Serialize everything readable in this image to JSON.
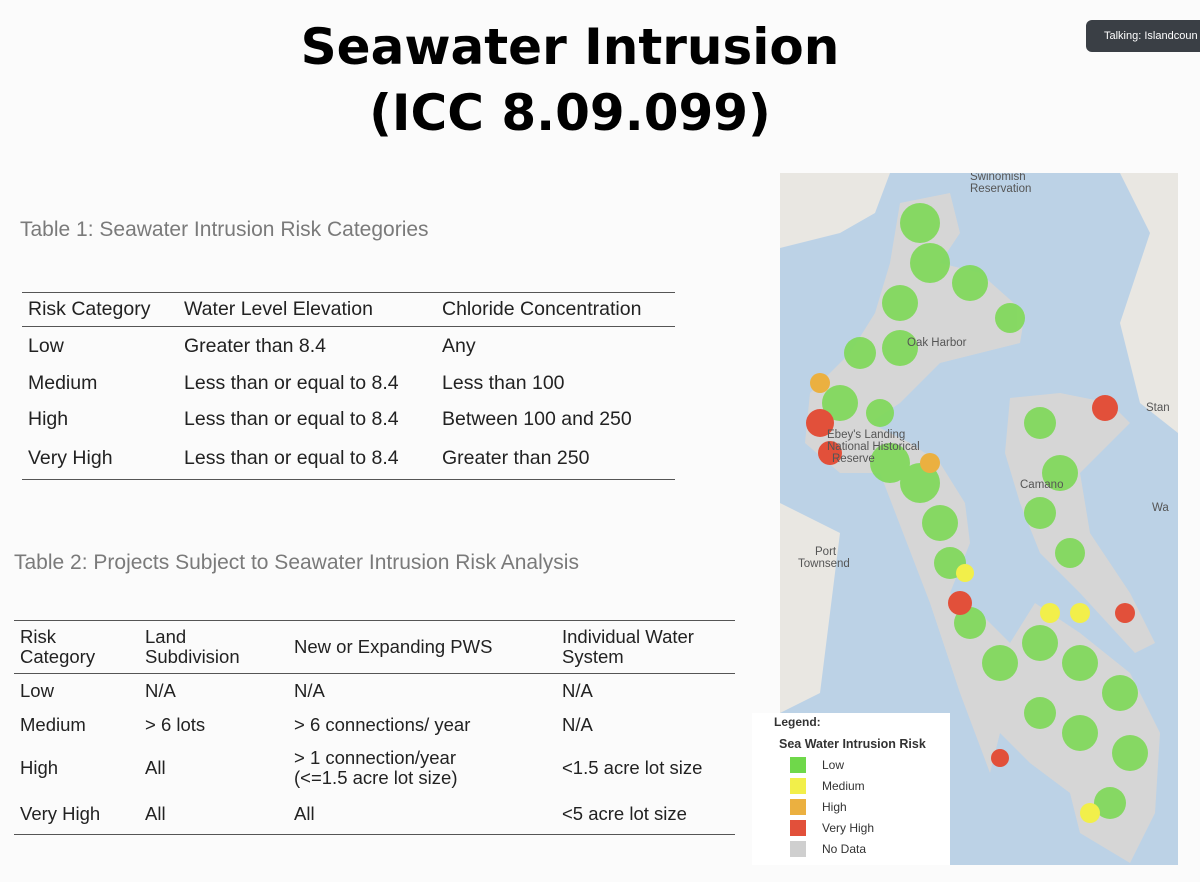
{
  "talking": "Talking: Islandcoun",
  "title": {
    "line1": "Seawater Intrusion",
    "line2": "(ICC 8.09.099)"
  },
  "table1": {
    "caption": "Table 1: Seawater Intrusion Risk Categories",
    "header": [
      "Risk Category",
      "Water Level Elevation",
      "Chloride Concentration"
    ],
    "rows": [
      [
        "Low",
        "Greater than 8.4",
        "Any"
      ],
      [
        "Medium",
        "Less than or equal to 8.4",
        "Less than 100"
      ],
      [
        "High",
        "Less than or equal to 8.4",
        "Between 100 and 250"
      ],
      [
        "Very High",
        "Less than or equal to 8.4",
        "Greater than 250"
      ]
    ]
  },
  "table2": {
    "caption": "Table 2: Projects Subject to Seawater Intrusion Risk Analysis",
    "header": [
      "Risk Category",
      "Land Subdivision",
      "New or Expanding PWS",
      "Individual Water System"
    ],
    "rows": [
      [
        "Low",
        "N/A",
        "N/A",
        "N/A"
      ],
      [
        "Medium",
        "> 6 lots",
        "> 6 connections/ year",
        "N/A"
      ],
      [
        "High",
        "All",
        [
          "> 1 connection/year",
          "(<=1.5 acre lot size)"
        ],
        "<1.5 acre lot size"
      ],
      [
        "Very High",
        "All",
        "All",
        "<5 acre lot size"
      ]
    ]
  },
  "map": {
    "labels": [
      "Swinomish",
      "Reservation",
      "Oak Harbor",
      "Ebey's Landing",
      "National Historical",
      "Reserve",
      "Camano",
      "Port",
      "Townsend",
      "Stan",
      "Wa"
    ],
    "legend": {
      "title": "Legend:",
      "subtitle": "Sea Water Intrusion Risk",
      "items": [
        {
          "name": "Low",
          "color": "#6fd84a"
        },
        {
          "name": "Medium",
          "color": "#f2ef4a"
        },
        {
          "name": "High",
          "color": "#ebb040"
        },
        {
          "name": "Very High",
          "color": "#e2503a"
        },
        {
          "name": "No Data",
          "color": "#cfcfcf"
        }
      ]
    }
  }
}
